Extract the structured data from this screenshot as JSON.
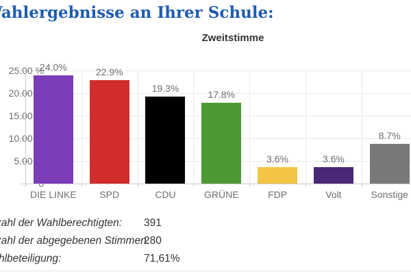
{
  "page": {
    "title": "Wahlergebnisse an Ihrer Schule:",
    "title_color": "#1f5cb0"
  },
  "chart_data": {
    "type": "bar",
    "title": "Zweitstimme",
    "categories": [
      "DIE LINKE",
      "SPD",
      "CDU",
      "GRÜNE",
      "FDP",
      "Volt",
      "Sonstige"
    ],
    "values": [
      24.0,
      22.9,
      19.3,
      17.8,
      3.6,
      3.6,
      8.7
    ],
    "value_labels": [
      "24.0%",
      "22.9%",
      "19.3%",
      "17.8%",
      "3.6%",
      "3.6%",
      "8.7%"
    ],
    "bar_colors": [
      "#7d3cb8",
      "#d32c2c",
      "#000000",
      "#4d9a35",
      "#f4c445",
      "#4a2777",
      "#787878"
    ],
    "ylim": [
      0,
      25
    ],
    "ytick_step": 5,
    "ytick_labels_top_to_bottom": [
      "25.00 %",
      "20.00 %",
      "15.00 %",
      "10.00 %",
      "5.00 %",
      "0"
    ],
    "grid": true,
    "legend": "none",
    "xlabel": "",
    "ylabel": ""
  },
  "stats": {
    "rows": [
      {
        "label": "Anzahl der Wahlberechtigten:",
        "value": "391"
      },
      {
        "label": "Anzahl der abgegebenen Stimmen:",
        "value": "280"
      },
      {
        "label": "Wahlbeteiligung:",
        "value": "71,61%"
      }
    ]
  }
}
